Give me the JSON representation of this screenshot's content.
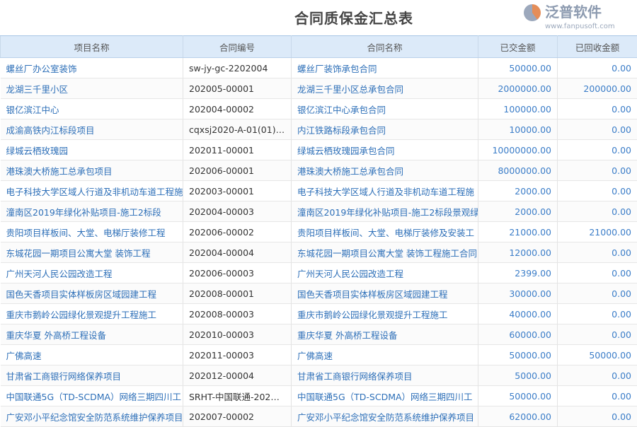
{
  "title": "合同质保金汇总表",
  "columns": [
    "项目名称",
    "合同编号",
    "合同名称",
    "已交金额",
    "已回收金额"
  ],
  "rows": [
    [
      "螺丝厂办公室装饰",
      "sw-jy-gc-2202004",
      "螺丝厂装饰承包合同",
      "50000.00",
      "0.00"
    ],
    [
      "龙湖三千里小区",
      "202005-00001",
      "龙湖三千里小区总承包合同",
      "2000000.00",
      "200000.00"
    ],
    [
      "银亿滨江中心",
      "202004-00002",
      "银亿滨江中心承包合同",
      "100000.00",
      "0.00"
    ],
    [
      "成渝高铁内江标段项目",
      "cqxsj2020-A-01(01)…",
      "内江铁路标段承包合同",
      "10000.00",
      "0.00"
    ],
    [
      "绿城云栖玫瑰园",
      "202011-00001",
      "绿城云栖玫瑰园承包合同",
      "10000000.00",
      "0.00"
    ],
    [
      "港珠澳大桥施工总承包项目",
      "202006-00001",
      "港珠澳大桥施工总承包合同",
      "8000000.00",
      "0.00"
    ],
    [
      "电子科技大学区域人行道及非机动车道工程施",
      "202003-00001",
      "电子科技大学区域人行道及非机动车道工程施",
      "2000.00",
      "0.00"
    ],
    [
      "潼南区2019年绿化补贴项目-施工2标段",
      "202004-00003",
      "潼南区2019年绿化补贴项目-施工2标段景观绿",
      "2000.00",
      "0.00"
    ],
    [
      "贵阳项目样板间、大堂、电梯厅装修工程",
      "202006-00002",
      "贵阳项目样板间、大堂、电梯厅装修及安装工",
      "21000.00",
      "21000.00"
    ],
    [
      "东城花园一期项目公寓大堂 装饰工程",
      "202004-00004",
      "东城花园一期项目公寓大堂 装饰工程施工合同",
      "12000.00",
      "0.00"
    ],
    [
      "广州天河人民公园改造工程",
      "202006-00003",
      "广州天河人民公园改造工程",
      "2399.00",
      "0.00"
    ],
    [
      "国色天香项目实体样板房区域园建工程",
      "202008-00001",
      "国色天香项目实体样板房区域园建工程",
      "30000.00",
      "0.00"
    ],
    [
      "重庆市鹅岭公园绿化景观提升工程施工",
      "202008-00003",
      "重庆市鹅岭公园绿化景观提升工程施工",
      "40000.00",
      "0.00"
    ],
    [
      "重庆华夏 外高桥工程设备",
      "202010-00003",
      "重庆华夏 外高桥工程设备",
      "60000.00",
      "0.00"
    ],
    [
      "广佛高速",
      "202011-00003",
      "广佛高速",
      "50000.00",
      "50000.00"
    ],
    [
      "甘肃省工商银行网络保养项目",
      "202012-00004",
      "甘肃省工商银行网络保养项目",
      "5000.00",
      "0.00"
    ],
    [
      "中国联通5G（TD-SCDMA）网络三期四川工",
      "SRHT-中国联通-202…",
      "中国联通5G（TD-SCDMA）网络三期四川工",
      "50000.00",
      "0.00"
    ],
    [
      "广安邓小平纪念馆安全防范系统维护保养项目",
      "202007-00002",
      "广安邓小平纪念馆安全防范系统维护保养项目",
      "62000.00",
      "0.00"
    ]
  ],
  "watermark": {
    "brand": "泛普软件",
    "url": "www.fanpusoft.com"
  },
  "colors": {
    "header_bg": "#dceaf9",
    "link": "#2d6fb8",
    "number": "#3b7dc8"
  }
}
